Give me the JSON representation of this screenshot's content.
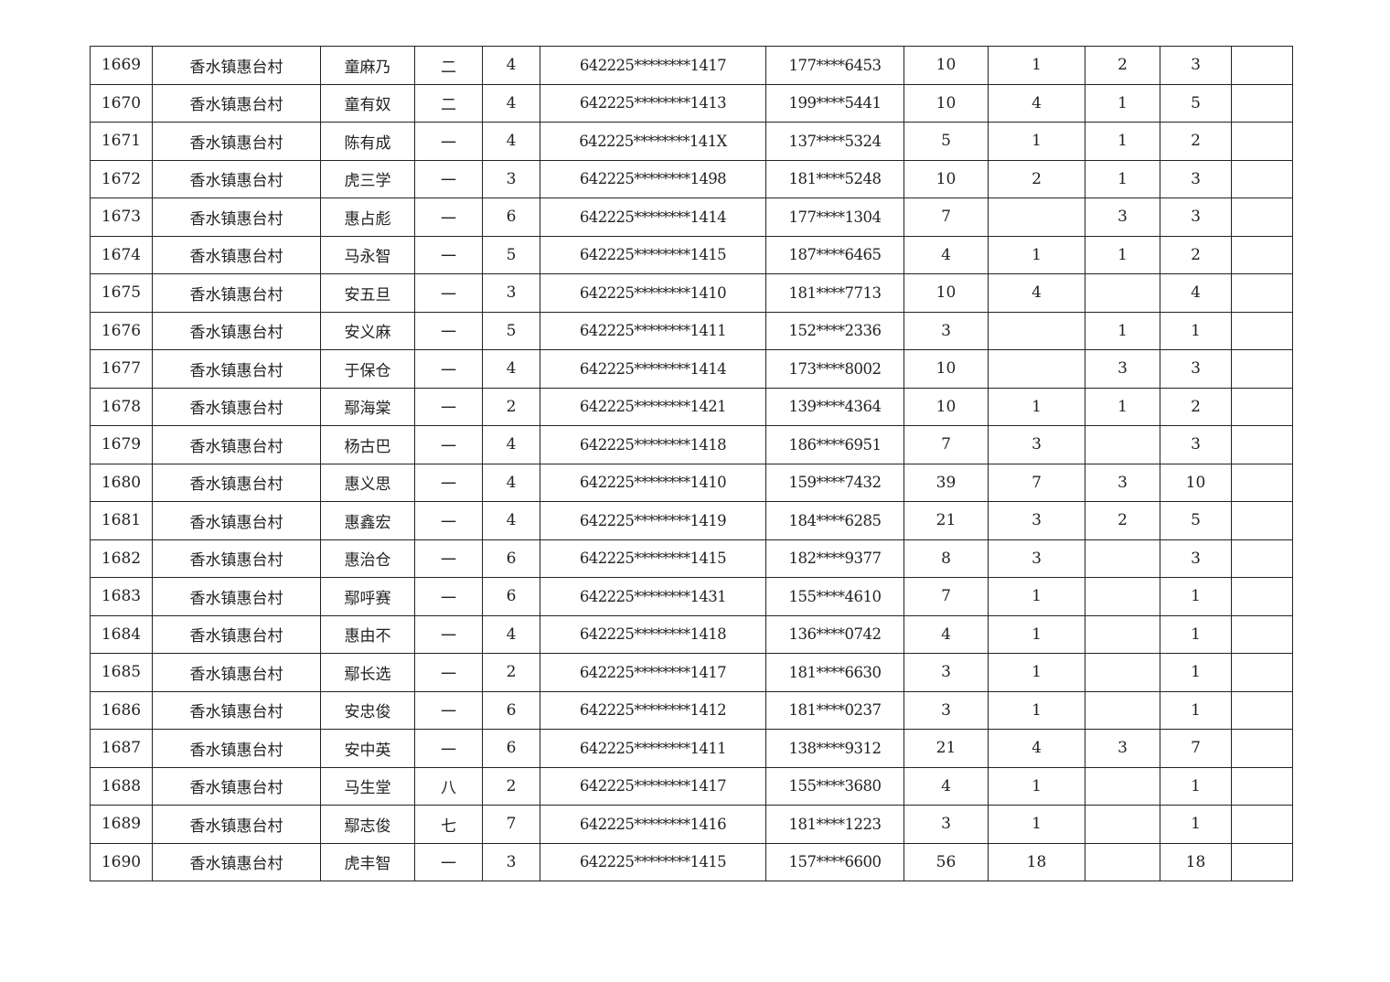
{
  "table": {
    "rows": [
      [
        "1669",
        "香水镇惠台村",
        "童麻乃",
        "二",
        "4",
        "642225********1417",
        "177****6453",
        "10",
        "1",
        "2",
        "3",
        ""
      ],
      [
        "1670",
        "香水镇惠台村",
        "童有奴",
        "二",
        "4",
        "642225********1413",
        "199****5441",
        "10",
        "4",
        "1",
        "5",
        ""
      ],
      [
        "1671",
        "香水镇惠台村",
        "陈有成",
        "一",
        "4",
        "642225********141X",
        "137****5324",
        "5",
        "1",
        "1",
        "2",
        ""
      ],
      [
        "1672",
        "香水镇惠台村",
        "虎三学",
        "一",
        "3",
        "642225********1498",
        "181****5248",
        "10",
        "2",
        "1",
        "3",
        ""
      ],
      [
        "1673",
        "香水镇惠台村",
        "惠占彪",
        "一",
        "6",
        "642225********1414",
        "177****1304",
        "7",
        "",
        "3",
        "3",
        ""
      ],
      [
        "1674",
        "香水镇惠台村",
        "马永智",
        "一",
        "5",
        "642225********1415",
        "187****6465",
        "4",
        "1",
        "1",
        "2",
        ""
      ],
      [
        "1675",
        "香水镇惠台村",
        "安五旦",
        "一",
        "3",
        "642225********1410",
        "181****7713",
        "10",
        "4",
        "",
        "4",
        ""
      ],
      [
        "1676",
        "香水镇惠台村",
        "安义麻",
        "一",
        "5",
        "642225********1411",
        "152****2336",
        "3",
        "",
        "1",
        "1",
        ""
      ],
      [
        "1677",
        "香水镇惠台村",
        "于保仓",
        "一",
        "4",
        "642225********1414",
        "173****8002",
        "10",
        "",
        "3",
        "3",
        ""
      ],
      [
        "1678",
        "香水镇惠台村",
        "鄢海棠",
        "一",
        "2",
        "642225********1421",
        "139****4364",
        "10",
        "1",
        "1",
        "2",
        ""
      ],
      [
        "1679",
        "香水镇惠台村",
        "杨古巴",
        "一",
        "4",
        "642225********1418",
        "186****6951",
        "7",
        "3",
        "",
        "3",
        ""
      ],
      [
        "1680",
        "香水镇惠台村",
        "惠义思",
        "一",
        "4",
        "642225********1410",
        "159****7432",
        "39",
        "7",
        "3",
        "10",
        ""
      ],
      [
        "1681",
        "香水镇惠台村",
        "惠鑫宏",
        "一",
        "4",
        "642225********1419",
        "184****6285",
        "21",
        "3",
        "2",
        "5",
        ""
      ],
      [
        "1682",
        "香水镇惠台村",
        "惠治仓",
        "一",
        "6",
        "642225********1415",
        "182****9377",
        "8",
        "3",
        "",
        "3",
        ""
      ],
      [
        "1683",
        "香水镇惠台村",
        "鄢呼赛",
        "一",
        "6",
        "642225********1431",
        "155****4610",
        "7",
        "1",
        "",
        "1",
        ""
      ],
      [
        "1684",
        "香水镇惠台村",
        "惠由不",
        "一",
        "4",
        "642225********1418",
        "136****0742",
        "4",
        "1",
        "",
        "1",
        ""
      ],
      [
        "1685",
        "香水镇惠台村",
        "鄢长选",
        "一",
        "2",
        "642225********1417",
        "181****6630",
        "3",
        "1",
        "",
        "1",
        ""
      ],
      [
        "1686",
        "香水镇惠台村",
        "安忠俊",
        "一",
        "6",
        "642225********1412",
        "181****0237",
        "3",
        "1",
        "",
        "1",
        ""
      ],
      [
        "1687",
        "香水镇惠台村",
        "安中英",
        "一",
        "6",
        "642225********1411",
        "138****9312",
        "21",
        "4",
        "3",
        "7",
        ""
      ],
      [
        "1688",
        "香水镇惠台村",
        "马生堂",
        "八",
        "2",
        "642225********1417",
        "155****3680",
        "4",
        "1",
        "",
        "1",
        ""
      ],
      [
        "1689",
        "香水镇惠台村",
        "鄢志俊",
        "七",
        "7",
        "642225********1416",
        "181****1223",
        "3",
        "1",
        "",
        "1",
        ""
      ],
      [
        "1690",
        "香水镇惠台村",
        "虎丰智",
        "一",
        "3",
        "642225********1415",
        "157****6600",
        "56",
        "18",
        "",
        "18",
        ""
      ]
    ]
  }
}
